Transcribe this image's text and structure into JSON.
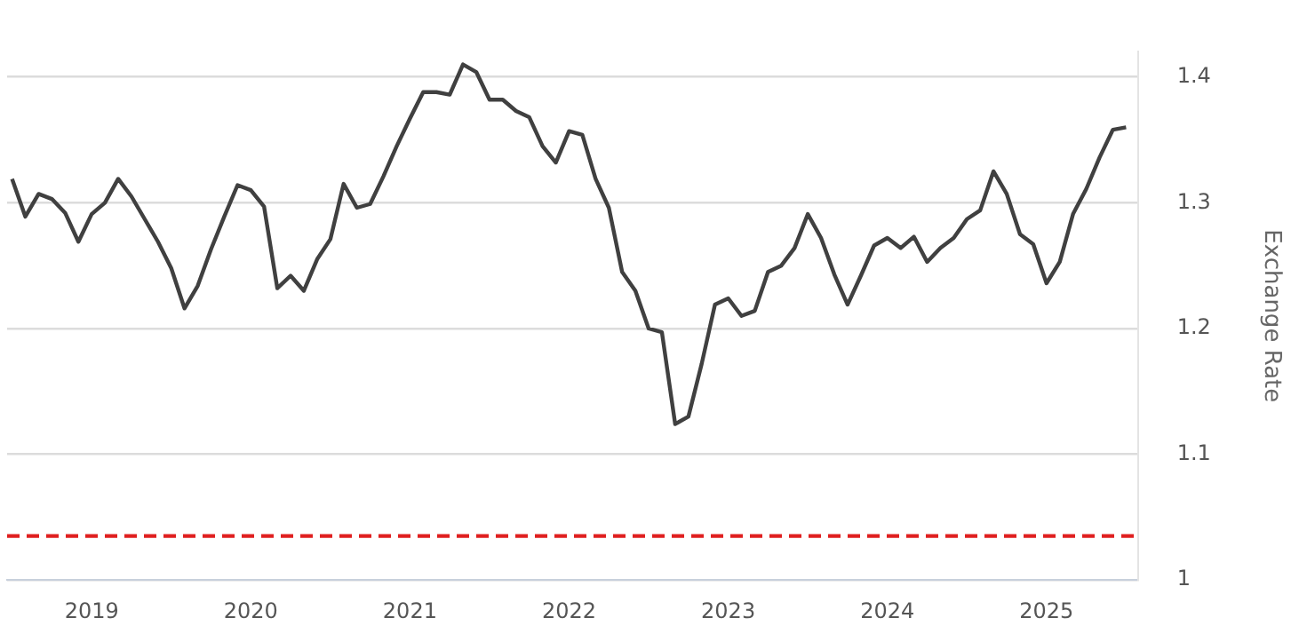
{
  "chart_data": {
    "type": "line",
    "ylabel": "Exchange Rate",
    "x": [
      "2018-07",
      "2018-08",
      "2018-09",
      "2018-10",
      "2018-11",
      "2018-12",
      "2019-01",
      "2019-02",
      "2019-03",
      "2019-04",
      "2019-05",
      "2019-06",
      "2019-07",
      "2019-08",
      "2019-09",
      "2019-10",
      "2019-11",
      "2019-12",
      "2020-01",
      "2020-02",
      "2020-03",
      "2020-04",
      "2020-05",
      "2020-06",
      "2020-07",
      "2020-08",
      "2020-09",
      "2020-10",
      "2020-11",
      "2020-12",
      "2021-01",
      "2021-02",
      "2021-03",
      "2021-04",
      "2021-05",
      "2021-06",
      "2021-07",
      "2021-08",
      "2021-09",
      "2021-10",
      "2021-11",
      "2021-12",
      "2022-01",
      "2022-02",
      "2022-03",
      "2022-04",
      "2022-05",
      "2022-06",
      "2022-07",
      "2022-08",
      "2022-09",
      "2022-10",
      "2022-11",
      "2022-12",
      "2023-01",
      "2023-02",
      "2023-03",
      "2023-04",
      "2023-05",
      "2023-06",
      "2023-07",
      "2023-08",
      "2023-09",
      "2023-10",
      "2023-11",
      "2023-12",
      "2024-01",
      "2024-02",
      "2024-03",
      "2024-04",
      "2024-05",
      "2024-06",
      "2024-07",
      "2024-08",
      "2024-09",
      "2024-10",
      "2024-11",
      "2024-12",
      "2025-01",
      "2025-02",
      "2025-03",
      "2025-04",
      "2025-05",
      "2025-06",
      "2025-07"
    ],
    "series": [
      {
        "color": "#404040",
        "values": [
          1.319,
          1.289,
          1.307,
          1.303,
          1.292,
          1.269,
          1.291,
          1.3,
          1.319,
          1.305,
          1.287,
          1.269,
          1.248,
          1.216,
          1.234,
          1.263,
          1.289,
          1.314,
          1.31,
          1.297,
          1.232,
          1.242,
          1.23,
          1.255,
          1.271,
          1.315,
          1.296,
          1.299,
          1.321,
          1.345,
          1.367,
          1.388,
          1.388,
          1.386,
          1.41,
          1.404,
          1.382,
          1.382,
          1.373,
          1.368,
          1.345,
          1.332,
          1.357,
          1.354,
          1.319,
          1.296,
          1.245,
          1.23,
          1.2,
          1.197,
          1.124,
          1.13,
          1.172,
          1.219,
          1.224,
          1.21,
          1.214,
          1.245,
          1.25,
          1.264,
          1.291,
          1.272,
          1.243,
          1.219,
          1.242,
          1.266,
          1.272,
          1.264,
          1.273,
          1.253,
          1.264,
          1.272,
          1.287,
          1.294,
          1.325,
          1.307,
          1.275,
          1.267,
          1.236,
          1.253,
          1.291,
          1.311,
          1.336,
          1.358,
          1.36
        ]
      }
    ],
    "xlim": [
      "2018-06-20",
      "2025-07-28"
    ],
    "xticks": [
      "2019",
      "2020",
      "2021",
      "2022",
      "2023",
      "2024",
      "2025"
    ],
    "ylim": [
      1,
      1.42
    ],
    "yticks": [
      1,
      1.1,
      1.2,
      1.3,
      1.4
    ],
    "ref_lines": [
      {
        "axis": "y",
        "value": 1.035,
        "color": "#e02020",
        "line_style": "dashed"
      }
    ],
    "grid": "y",
    "legend": false,
    "marker": "none",
    "line_style": "solid"
  }
}
